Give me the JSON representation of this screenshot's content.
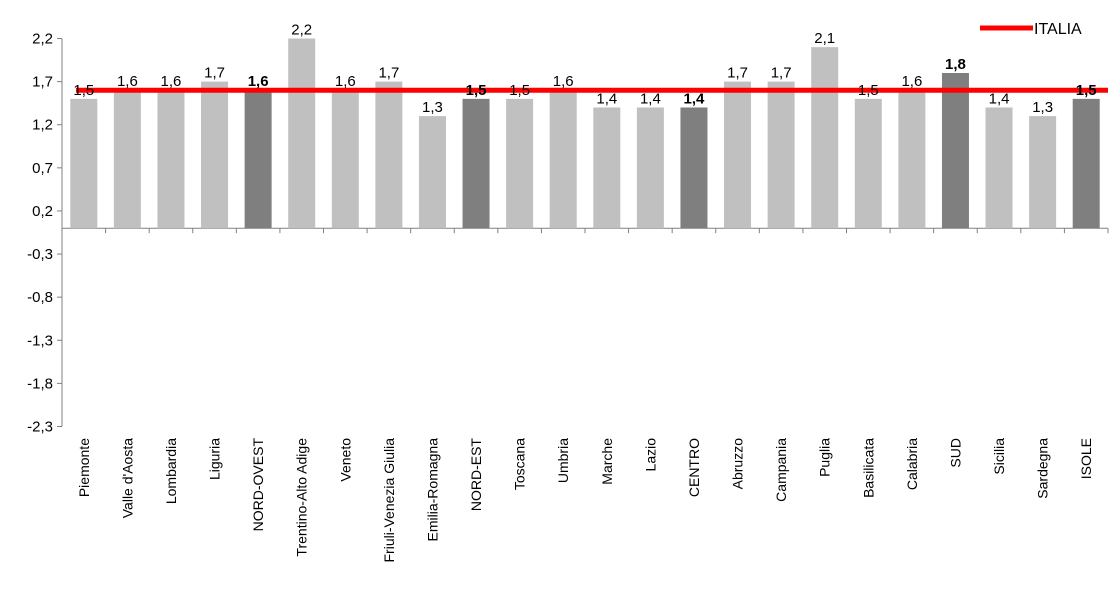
{
  "chart_data": {
    "type": "bar",
    "title": "",
    "xlabel": "",
    "ylabel": "",
    "ylim": [
      -2.3,
      2.4
    ],
    "y_ticks": [
      "2,2",
      "1,7",
      "1,2",
      "0,7",
      "0,2",
      "-0,3",
      "-0,8",
      "-1,3",
      "-1,8",
      "-2,3"
    ],
    "y_tick_values": [
      2.2,
      1.7,
      1.2,
      0.7,
      0.2,
      -0.3,
      -0.8,
      -1.3,
      -1.8,
      -2.3
    ],
    "categories": [
      "Piemonte",
      "Valle d'Aosta",
      "Lombardia",
      "Liguria",
      "NORD-OVEST",
      "Trentino-Alto Adige",
      "Veneto",
      "Friuli-Venezia Giulia",
      "Emilia-Romagna",
      "NORD-EST",
      "Toscana",
      "Umbria",
      "Marche",
      "Lazio",
      "CENTRO",
      "Abruzzo",
      "Campania",
      "Puglia",
      "Basilicata",
      "Calabria",
      "SUD",
      "Sicilia",
      "Sardegna",
      "ISOLE"
    ],
    "values": [
      1.5,
      1.6,
      1.6,
      1.7,
      1.6,
      2.2,
      1.6,
      1.7,
      1.3,
      1.5,
      1.5,
      1.6,
      1.4,
      1.4,
      1.4,
      1.7,
      1.7,
      2.1,
      1.5,
      1.6,
      1.8,
      1.4,
      1.3,
      1.5
    ],
    "value_labels": [
      "1,5",
      "1,6",
      "1,6",
      "1,7",
      "1,6",
      "2,2",
      "1,6",
      "1,7",
      "1,3",
      "1,5",
      "1,5",
      "1,6",
      "1,4",
      "1,4",
      "1,4",
      "1,7",
      "1,7",
      "2,1",
      "1,5",
      "1,6",
      "1,8",
      "1,4",
      "1,3",
      "1,5"
    ],
    "macro_area": [
      false,
      false,
      false,
      false,
      true,
      false,
      false,
      false,
      false,
      true,
      false,
      false,
      false,
      false,
      true,
      false,
      false,
      false,
      false,
      false,
      true,
      false,
      false,
      true
    ],
    "reference_line": {
      "name": "ITALIA",
      "value": 1.6,
      "color": "#ff0000"
    },
    "colors": {
      "region_bar": "#c0c0c0",
      "macro_bar": "#7f7f7f",
      "axis": "#808080"
    },
    "legend": {
      "position": "top-right",
      "entries": [
        "ITALIA"
      ]
    },
    "grid": false
  }
}
